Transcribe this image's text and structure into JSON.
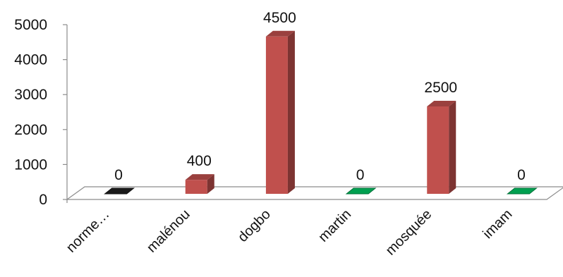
{
  "chart_data": {
    "type": "bar",
    "title": "",
    "xlabel": "",
    "ylabel": "",
    "ylim": [
      0,
      5000
    ],
    "yticks": [
      0,
      1000,
      2000,
      3000,
      4000,
      5000
    ],
    "categories": [
      "norme…",
      "malénou",
      "dogbo",
      "martin",
      "mosquée",
      "imam"
    ],
    "values": [
      0,
      400,
      4500,
      0,
      2500,
      0
    ],
    "data_labels": [
      "0",
      "400",
      "4500",
      "0",
      "2500",
      "0"
    ],
    "bar_colors": [
      "#1a1a1a",
      "#c0504d",
      "#c0504d",
      "#00a050",
      "#c0504d",
      "#00a050"
    ],
    "grid": false,
    "legend": "none",
    "style": "3d-column"
  }
}
